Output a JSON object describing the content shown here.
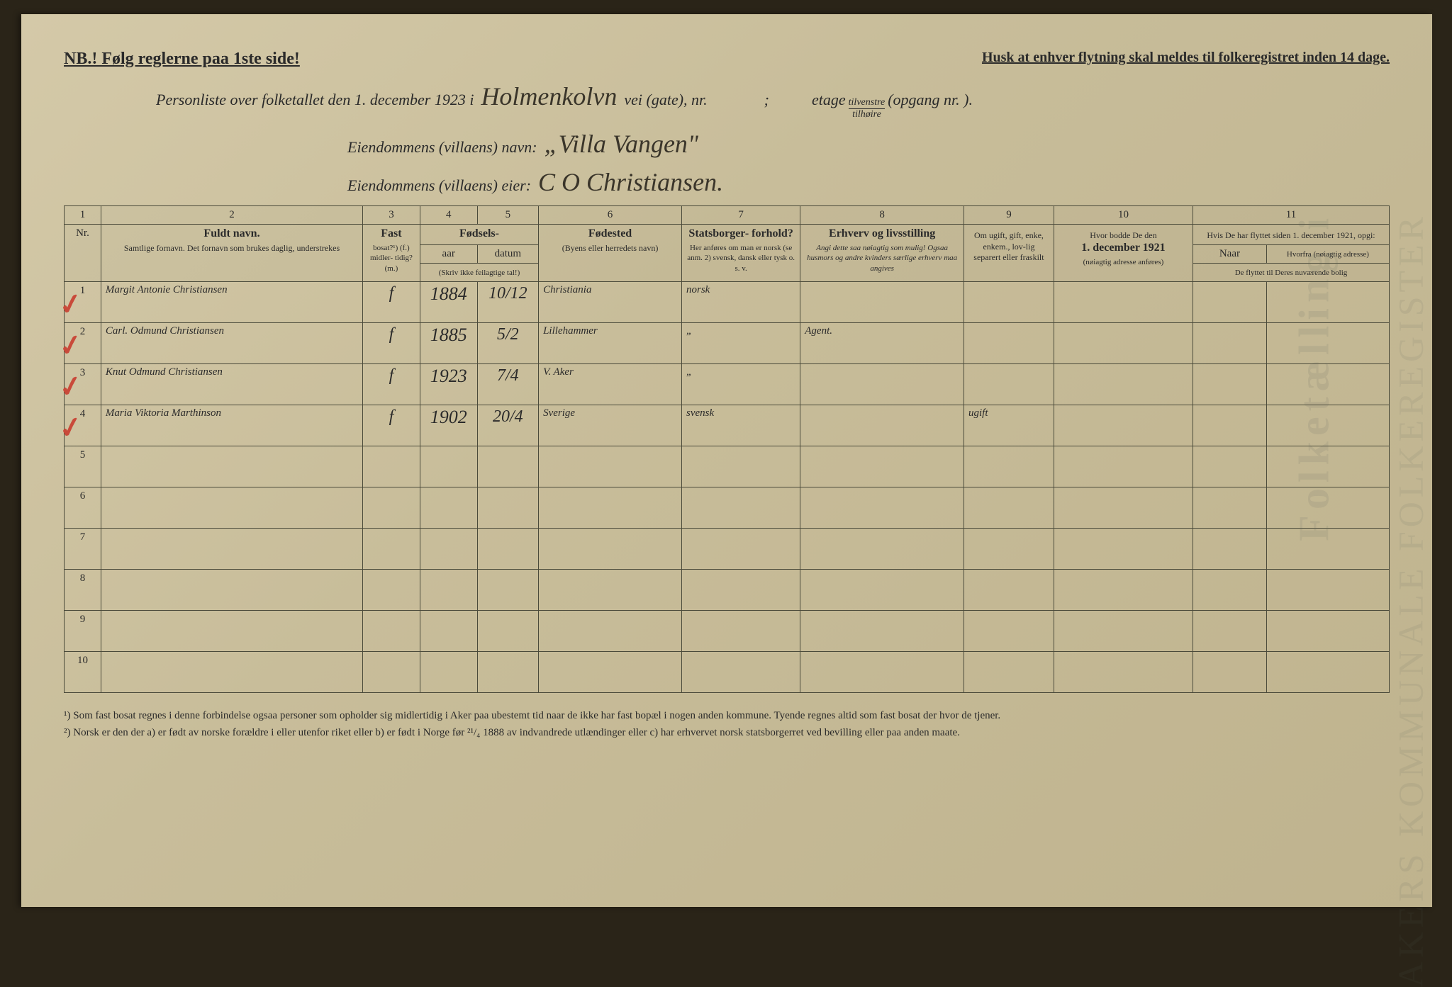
{
  "top": {
    "nb": "NB.! Følg reglerne paa 1ste side!",
    "husk": "Husk at enhver flytning skal meldes til folkeregistret inden 14 dage."
  },
  "header": {
    "line1_a": "Personliste over folketallet den 1. december 1923 i",
    "street_hand": "Holmenkolvn",
    "line1_b": "vei (gate), nr.",
    "line1_c": ";",
    "etage": "etage",
    "etage_top": "tilvenstre",
    "etage_bot": "tilhøire",
    "line1_d": "(opgang nr.       ).",
    "line2_a": "Eiendommens (villaens) navn:",
    "villa_hand": "„Villa Vangen\"",
    "line3_a": "Eiendommens (villaens) eier:",
    "owner_hand": "C O Christiansen."
  },
  "columns": {
    "nums": [
      "1",
      "2",
      "3",
      "4",
      "5",
      "6",
      "7",
      "8",
      "9",
      "10",
      "11"
    ],
    "nr": "Nr.",
    "name_main": "Fuldt navn.",
    "name_sub": "Samtlige fornavn.\nDet fornavn som brukes daglig, understrekes",
    "fast_main": "Fast",
    "fast_sub": "bosat?¹)\n(f.)\nmidler-\ntidig?\n(m.)",
    "birth_main": "Fødsels-",
    "birth_yr": "aar",
    "birth_dt": "datum",
    "birth_sub": "(Skriv ikke feilagtige tal!)",
    "bplace_main": "Fødested",
    "bplace_sub": "(Byens eller herredets navn)",
    "citz_main": "Statsborger-\nforhold?",
    "citz_sub": "Her anføres om man er norsk (se anm. 2) svensk, dansk eller tysk o. s. v.",
    "occ_main": "Erhverv og livsstilling",
    "occ_sub": "Angi dette saa nøiagtig som mulig!\nOgsaa husmors og andre kvinders særlige erhverv maa angives",
    "mar_main": "Om ugift, gift, enke, enkem., lov-lig separert eller fraskilt",
    "addr1921_main": "Hvor bodde De den",
    "addr1921_b": "1. december 1921",
    "addr1921_sub": "(nøiagtig adresse anføres)",
    "moved_main": "Hvis De har flyttet siden 1. december 1921, opgi:",
    "moved_when": "Naar",
    "moved_from": "Hvorfra (nøiagtig adresse)",
    "moved_sub": "De flyttet til Deres nuværende bolig"
  },
  "rows": [
    {
      "n": "1",
      "check": true,
      "name": "Margit Antonie Christiansen",
      "fast": "f",
      "yr": "1884",
      "dt": "10/12",
      "bplace": "Christiania",
      "citz": "norsk",
      "occ": "",
      "mar": "",
      "addr": "",
      "when": "",
      "from": ""
    },
    {
      "n": "2",
      "check": true,
      "name": "Carl. Odmund Christiansen",
      "fast": "f",
      "yr": "1885",
      "dt": "5/2",
      "bplace": "Lillehammer",
      "citz": "„",
      "occ": "Agent.",
      "mar": "",
      "addr": "",
      "when": "",
      "from": ""
    },
    {
      "n": "3",
      "check": true,
      "name": "Knut Odmund Christiansen",
      "fast": "f",
      "yr": "1923",
      "dt": "7/4",
      "bplace": "V. Aker",
      "citz": "„",
      "occ": "",
      "mar": "",
      "addr": "",
      "when": "",
      "from": ""
    },
    {
      "n": "4",
      "check": true,
      "name": "Maria Viktoria Marthinson",
      "fast": "f",
      "yr": "1902",
      "dt": "20/4",
      "bplace": "Sverige",
      "citz": "svensk",
      "occ": "",
      "mar": "ugift",
      "addr": "",
      "when": "",
      "from": ""
    },
    {
      "n": "5",
      "check": false,
      "name": "",
      "fast": "",
      "yr": "",
      "dt": "",
      "bplace": "",
      "citz": "",
      "occ": "",
      "mar": "",
      "addr": "",
      "when": "",
      "from": ""
    },
    {
      "n": "6",
      "check": false,
      "name": "",
      "fast": "",
      "yr": "",
      "dt": "",
      "bplace": "",
      "citz": "",
      "occ": "",
      "mar": "",
      "addr": "",
      "when": "",
      "from": ""
    },
    {
      "n": "7",
      "check": false,
      "name": "",
      "fast": "",
      "yr": "",
      "dt": "",
      "bplace": "",
      "citz": "",
      "occ": "",
      "mar": "",
      "addr": "",
      "when": "",
      "from": ""
    },
    {
      "n": "8",
      "check": false,
      "name": "",
      "fast": "",
      "yr": "",
      "dt": "",
      "bplace": "",
      "citz": "",
      "occ": "",
      "mar": "",
      "addr": "",
      "when": "",
      "from": ""
    },
    {
      "n": "9",
      "check": false,
      "name": "",
      "fast": "",
      "yr": "",
      "dt": "",
      "bplace": "",
      "citz": "",
      "occ": "",
      "mar": "",
      "addr": "",
      "when": "",
      "from": ""
    },
    {
      "n": "10",
      "check": false,
      "name": "",
      "fast": "",
      "yr": "",
      "dt": "",
      "bplace": "",
      "citz": "",
      "occ": "",
      "mar": "",
      "addr": "",
      "when": "",
      "from": ""
    }
  ],
  "footnotes": {
    "f1": "¹) Som fast bosat regnes i denne forbindelse ogsaa personer som opholder sig midlertidig i Aker paa ubestemt tid naar de ikke har fast bopæl i nogen anden kommune. Tyende regnes altid som fast bosat der hvor de tjener.",
    "f2": "²) Norsk er den der a) er født av norske forældre i eller utenfor riket eller b) er født i Norge før ²¹/₄ 1888 av indvandrede utlændinger eller c) har erhvervet norsk statsborgerret ved bevilling eller paa anden maate."
  },
  "watermark1": "Folketælling i",
  "watermark2": "AKERS KOMMUNALE FOLKEREGISTER"
}
